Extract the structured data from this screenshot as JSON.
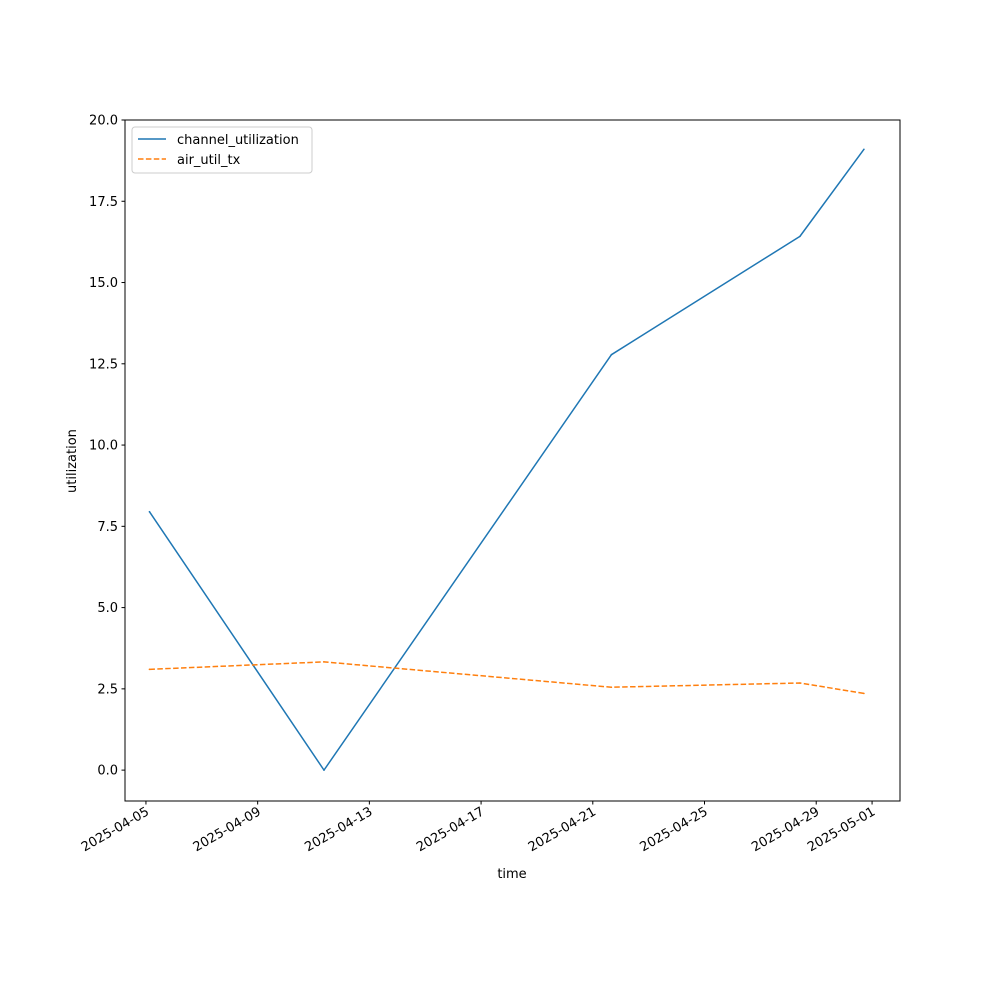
{
  "chart_data": {
    "type": "line",
    "xlabel": "time",
    "ylabel": "utilization",
    "x_tick_labels": [
      "2025-04-05",
      "2025-04-09",
      "2025-04-13",
      "2025-04-17",
      "2025-04-21",
      "2025-04-25",
      "2025-04-29",
      "2025-05-01"
    ],
    "y_tick_labels": [
      "0.0",
      "2.5",
      "5.0",
      "7.5",
      "10.0",
      "12.5",
      "15.0",
      "17.5",
      "20.0"
    ],
    "xlim": [
      "2025-04-04 06:00",
      "2025-05-02 00:00"
    ],
    "ylim": [
      -0.95,
      20.0
    ],
    "grid": false,
    "legend_position": "upper left",
    "series": [
      {
        "name": "channel_utilization",
        "color": "#1f77b4",
        "line_style": "solid",
        "points": [
          {
            "x": "2025-04-05 03:00",
            "y": 7.95
          },
          {
            "x": "2025-04-11 09:00",
            "y": 0.0
          },
          {
            "x": "2025-04-21 16:00",
            "y": 12.78
          },
          {
            "x": "2025-04-28 10:00",
            "y": 16.42
          },
          {
            "x": "2025-04-30 17:00",
            "y": 19.1
          }
        ]
      },
      {
        "name": "air_util_tx",
        "color": "#ff7f0e",
        "line_style": "dashed",
        "points": [
          {
            "x": "2025-04-05 03:00",
            "y": 3.1
          },
          {
            "x": "2025-04-11 09:00",
            "y": 3.33
          },
          {
            "x": "2025-04-21 16:00",
            "y": 2.55
          },
          {
            "x": "2025-04-28 10:00",
            "y": 2.68
          },
          {
            "x": "2025-04-30 17:00",
            "y": 2.36
          }
        ]
      }
    ]
  }
}
